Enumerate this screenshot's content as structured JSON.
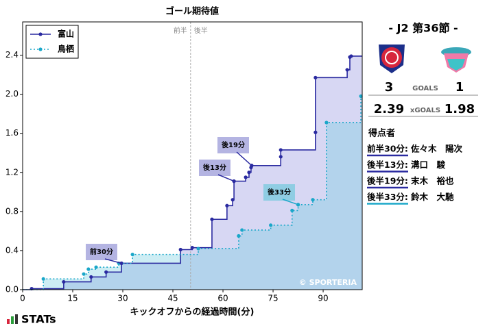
{
  "chart_data": {
    "type": "step",
    "title": "ゴール期待値",
    "x_label": "キックオフからの経過時間(分)",
    "xlim": [
      0,
      101.7
    ],
    "xticks": [
      0,
      15,
      30,
      45,
      60,
      75,
      90
    ],
    "ylim": [
      0,
      2.74
    ],
    "yticks": [
      {
        "value": 0,
        "label": "0.0"
      },
      {
        "value": 0.4,
        "label": "0.4"
      },
      {
        "value": 0.8,
        "label": "0.8"
      },
      {
        "value": 1.2,
        "label": "1.2"
      },
      {
        "value": 1.6,
        "label": "1.6"
      },
      {
        "value": 2.0,
        "label": "2.0"
      },
      {
        "value": 2.4,
        "label": "2.4"
      }
    ],
    "legend": "upper left",
    "series": [
      {
        "name": "富山",
        "color": "#2a2aa0",
        "fill": "#8c8cdc",
        "dashed": false,
        "x": [
          2.7,
          12.3,
          20.5,
          25,
          29.6,
          47.3,
          50.8,
          56.7,
          61.2,
          62.9,
          63.3,
          66.8,
          67.8,
          68.4,
          68.6,
          77.3,
          77.3,
          87.7,
          87.7,
          97.2,
          98,
          98.4
        ],
        "values": [
          0.01,
          0.08,
          0.13,
          0.18,
          0.27,
          0.41,
          0.43,
          0.72,
          0.86,
          0.92,
          1.11,
          1.15,
          1.2,
          1.25,
          1.27,
          1.36,
          1.43,
          1.61,
          2.17,
          2.25,
          2.38,
          2.39
        ]
      },
      {
        "name": "鳥栖",
        "color": "#1aa7c9",
        "fill": "#6fcbe0",
        "dashed": true,
        "x": [
          6.2,
          18.3,
          19.7,
          22,
          28.8,
          32.9,
          52.6,
          64.7,
          65.7,
          74.3,
          80.7,
          82.5,
          86.9,
          91,
          101.3
        ],
        "values": [
          0.11,
          0.16,
          0.21,
          0.23,
          0.27,
          0.36,
          0.42,
          0.55,
          0.61,
          0.66,
          0.81,
          0.87,
          0.92,
          1.71,
          1.98
        ]
      }
    ],
    "annotations": [
      {
        "text": "前30分",
        "x": 29.6,
        "y": 0.27,
        "series": 0
      },
      {
        "text": "後13分",
        "x": 63.3,
        "y": 1.11,
        "series": 0
      },
      {
        "text": "後19分",
        "x": 68.6,
        "y": 1.27,
        "series": 0
      },
      {
        "text": "後33分",
        "x": 82.5,
        "y": 0.87,
        "series": 1
      }
    ],
    "halftime": {
      "x": 50.3,
      "before": "前半",
      "after": "後半"
    },
    "watermark": "© SPORTERIA"
  },
  "panel": {
    "match": "- J2 第36節 -",
    "goals": {
      "label": "GOALS",
      "home": 3,
      "away": 1
    },
    "xgoals": {
      "label": "xGOALS",
      "home": 2.39,
      "away": 1.98
    },
    "scorers_title": "得点者",
    "scorers": [
      {
        "time": "前半30分:",
        "name": "佐々木　陽次",
        "series": 0
      },
      {
        "time": "後半13分:",
        "name": "溝口　駿",
        "series": 0
      },
      {
        "time": "後半19分:",
        "name": "末木　裕也",
        "series": 0
      },
      {
        "time": "後半33分:",
        "name": "鈴木　大馳",
        "series": 1
      }
    ]
  },
  "brand": "STATs"
}
